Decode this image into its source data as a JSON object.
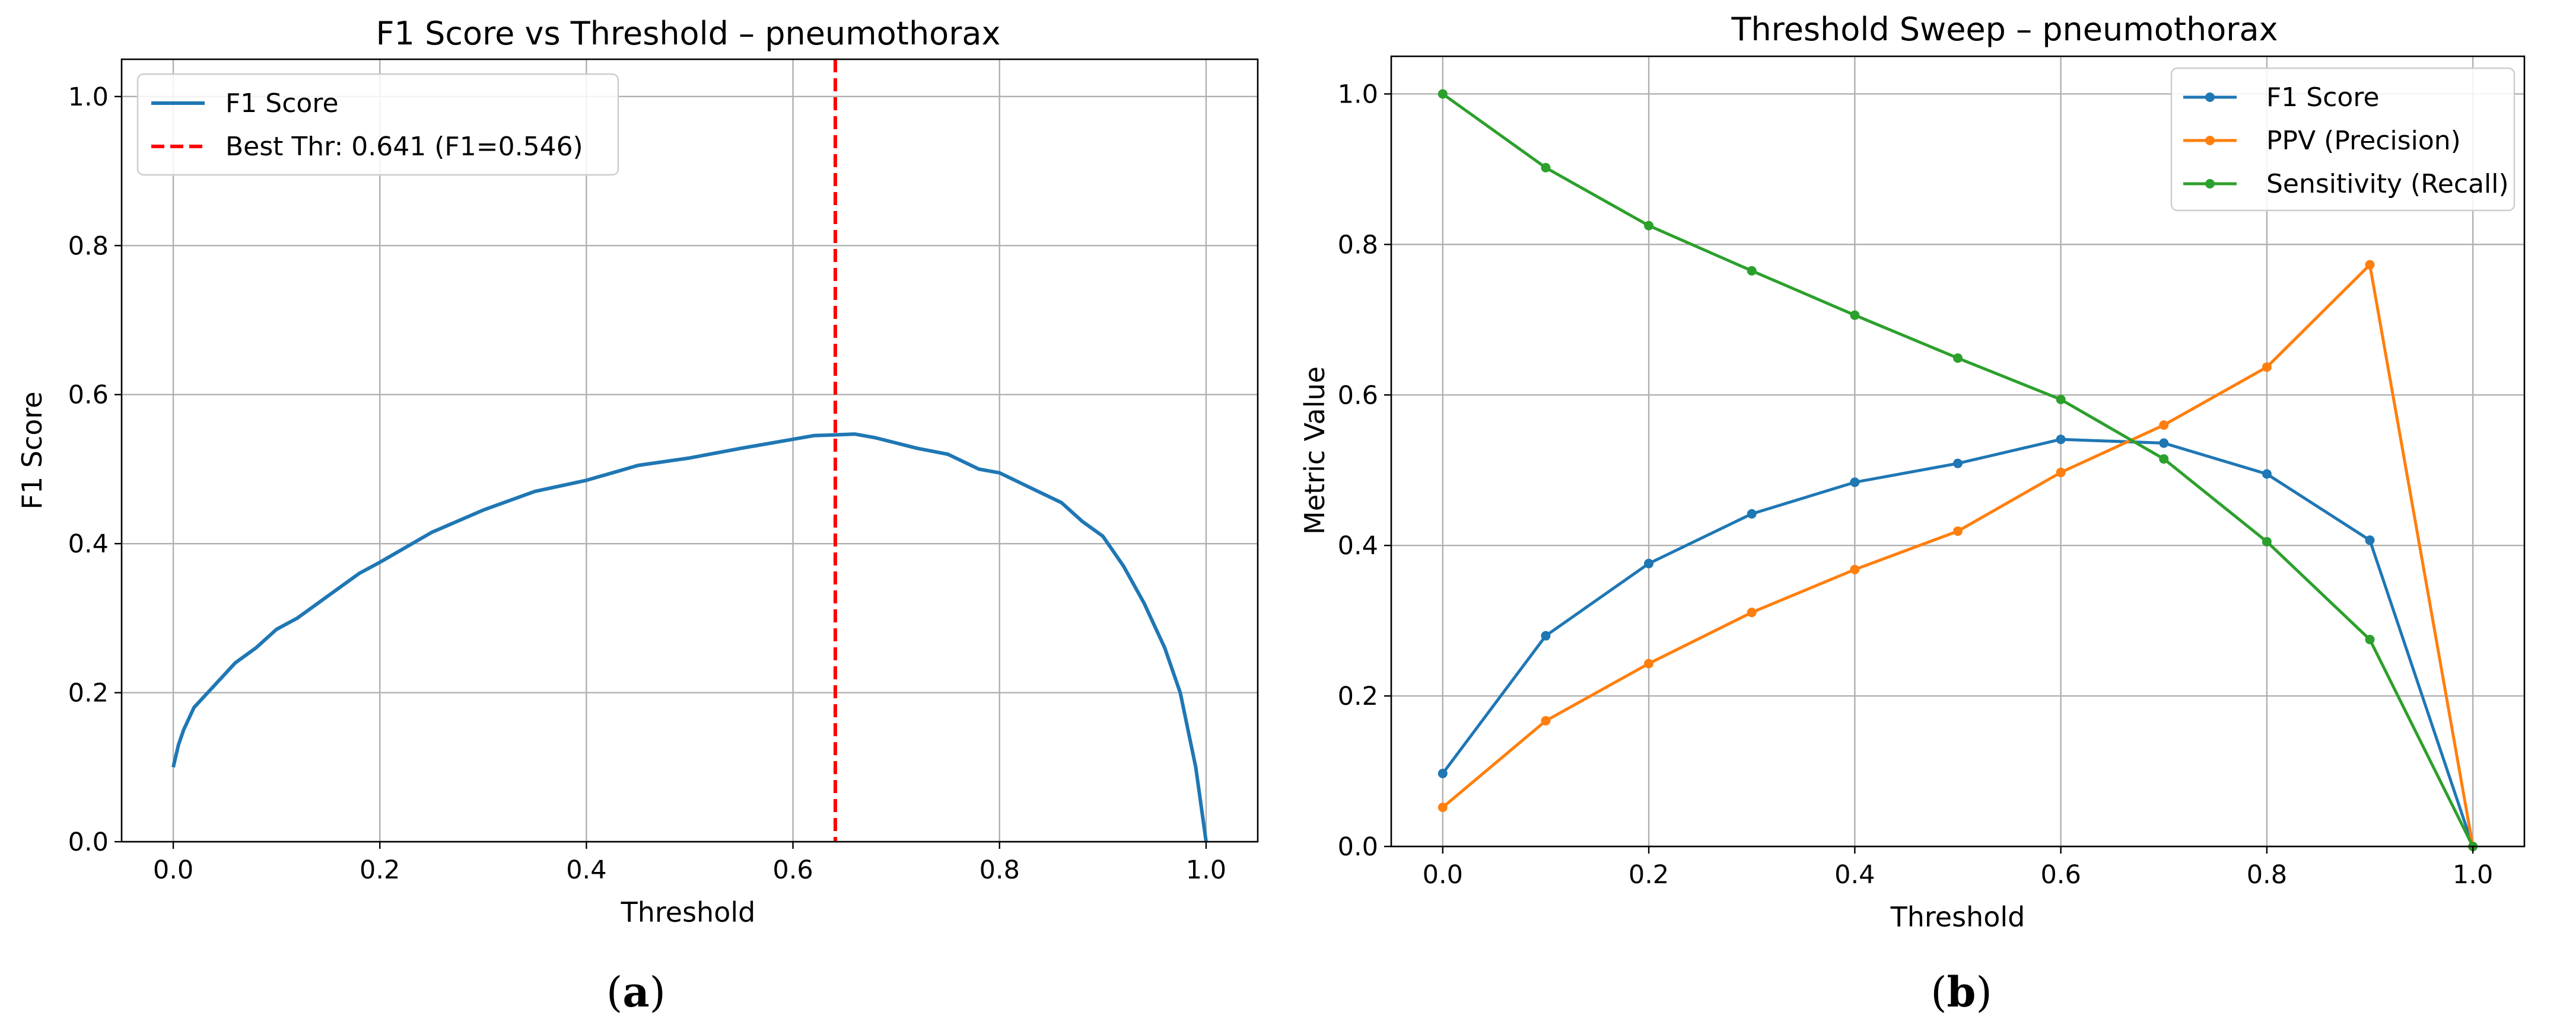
{
  "panels": {
    "a": {
      "caption_open": "(",
      "caption_letter": "a",
      "caption_close": ")"
    },
    "b": {
      "caption_open": "(",
      "caption_letter": "b",
      "caption_close": ")"
    }
  },
  "chart_data": [
    {
      "type": "line",
      "title": "F1 Score vs Threshold – pneumothorax",
      "xlabel": "Threshold",
      "ylabel": "F1 Score",
      "xlim": [
        -0.05,
        1.05
      ],
      "ylim": [
        0.0,
        1.05
      ],
      "xticks": [
        "0.0",
        "0.2",
        "0.4",
        "0.6",
        "0.8",
        "1.0"
      ],
      "yticks": [
        "0.0",
        "0.2",
        "0.4",
        "0.6",
        "0.8",
        "1.0"
      ],
      "grid": true,
      "legend_position": "top-left",
      "series": [
        {
          "name": "F1 Score",
          "color": "#1f77b4",
          "x": [
            0.0,
            0.005,
            0.01,
            0.02,
            0.04,
            0.06,
            0.08,
            0.1,
            0.12,
            0.15,
            0.18,
            0.2,
            0.25,
            0.3,
            0.35,
            0.4,
            0.45,
            0.5,
            0.55,
            0.6,
            0.62,
            0.641,
            0.66,
            0.68,
            0.7,
            0.72,
            0.75,
            0.78,
            0.8,
            0.83,
            0.86,
            0.88,
            0.9,
            0.92,
            0.94,
            0.96,
            0.975,
            0.99,
            1.0
          ],
          "y": [
            0.1,
            0.13,
            0.15,
            0.18,
            0.21,
            0.24,
            0.26,
            0.285,
            0.3,
            0.33,
            0.36,
            0.375,
            0.415,
            0.445,
            0.47,
            0.485,
            0.505,
            0.515,
            0.528,
            0.54,
            0.545,
            0.546,
            0.547,
            0.542,
            0.535,
            0.528,
            0.52,
            0.5,
            0.495,
            0.475,
            0.455,
            0.43,
            0.41,
            0.37,
            0.32,
            0.26,
            0.2,
            0.1,
            0.0
          ]
        }
      ],
      "vline": {
        "name": "Best Thr: 0.641 (F1=0.546)",
        "x": 0.641,
        "color": "#ff0000"
      }
    },
    {
      "type": "line",
      "title": "Threshold Sweep – pneumothorax",
      "xlabel": "Threshold",
      "ylabel": "Metric Value",
      "xlim": [
        -0.05,
        1.05
      ],
      "ylim": [
        0.0,
        1.05
      ],
      "xticks": [
        "0.0",
        "0.2",
        "0.4",
        "0.6",
        "0.8",
        "1.0"
      ],
      "yticks": [
        "0.0",
        "0.2",
        "0.4",
        "0.6",
        "0.8",
        "1.0"
      ],
      "grid": true,
      "legend_position": "top-right",
      "x": [
        0.0,
        0.1,
        0.2,
        0.3,
        0.4,
        0.5,
        0.6,
        0.7,
        0.8,
        0.9,
        1.0
      ],
      "series": [
        {
          "name": "F1 Score",
          "color": "#1f77b4",
          "values": [
            0.097,
            0.28,
            0.376,
            0.442,
            0.484,
            0.509,
            0.541,
            0.536,
            0.495,
            0.407,
            0.0
          ]
        },
        {
          "name": "PPV (Precision)",
          "color": "#ff7f0e",
          "values": [
            0.052,
            0.167,
            0.243,
            0.311,
            0.368,
            0.419,
            0.497,
            0.56,
            0.637,
            0.773,
            0.0
          ]
        },
        {
          "name": "Sensitivity (Recall)",
          "color": "#2ca02c",
          "values": [
            1.0,
            0.902,
            0.825,
            0.765,
            0.706,
            0.649,
            0.594,
            0.515,
            0.405,
            0.275,
            0.0
          ]
        }
      ]
    }
  ]
}
